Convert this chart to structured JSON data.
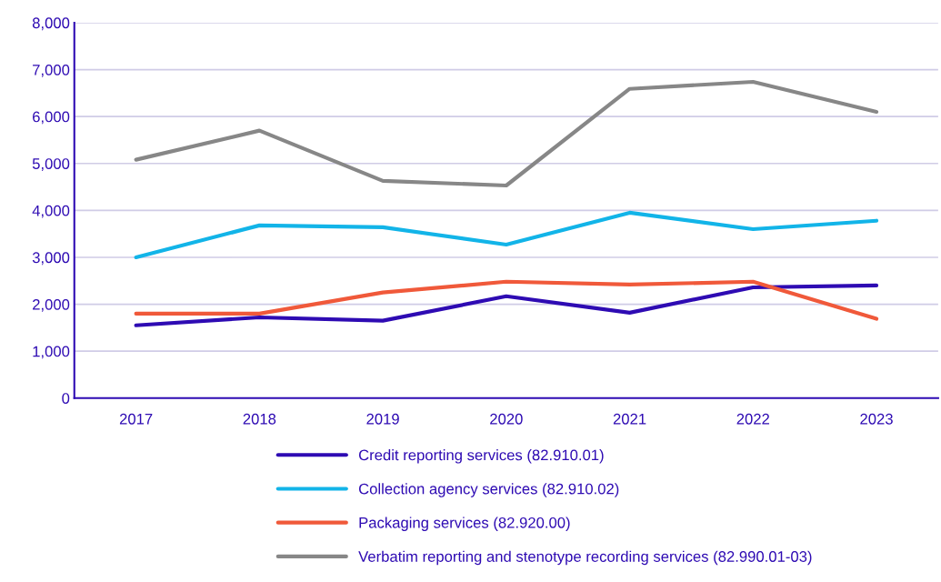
{
  "chart_data": {
    "type": "line",
    "categories": [
      "2017",
      "2018",
      "2019",
      "2020",
      "2021",
      "2022",
      "2023"
    ],
    "series": [
      {
        "name": "Credit reporting services (82.910.01)",
        "color": "#2e0bb3",
        "values": [
          1550,
          1720,
          1650,
          2170,
          1820,
          2360,
          2400
        ]
      },
      {
        "name": "Collection agency services (82.910.02)",
        "color": "#12b4e8",
        "values": [
          3000,
          3680,
          3640,
          3270,
          3950,
          3600,
          3780
        ]
      },
      {
        "name": "Packaging services (82.920.00)",
        "color": "#f0593a",
        "values": [
          1800,
          1800,
          2250,
          2480,
          2420,
          2480,
          1690
        ]
      },
      {
        "name": "Verbatim reporting and stenotype recording services (82.990.01-03)",
        "color": "#878787",
        "values": [
          5080,
          5700,
          4630,
          4530,
          6590,
          6740,
          6100
        ]
      }
    ],
    "ylim": [
      0,
      8000
    ],
    "yticks": [
      {
        "value": 0,
        "label": "0"
      },
      {
        "value": 1000,
        "label": "1,000"
      },
      {
        "value": 2000,
        "label": "2,000"
      },
      {
        "value": 3000,
        "label": "3,000"
      },
      {
        "value": 4000,
        "label": "4,000"
      },
      {
        "value": 5000,
        "label": "5,000"
      },
      {
        "value": 6000,
        "label": "6,000"
      },
      {
        "value": 7000,
        "label": "7,000"
      },
      {
        "value": 8000,
        "label": "8,000"
      }
    ],
    "grid": "y",
    "legend": "bottom",
    "marker": "none",
    "line_style": "solid"
  }
}
